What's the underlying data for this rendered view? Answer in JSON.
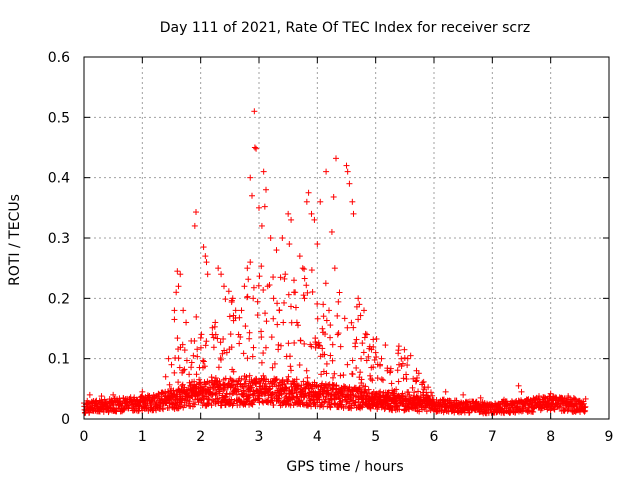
{
  "chart_data": {
    "type": "scatter",
    "title": "Day 111 of 2021, Rate Of TEC Index for receiver scrz",
    "xlabel": "GPS time / hours",
    "ylabel": "ROTI / TECUs",
    "xlim": [
      0,
      9
    ],
    "ylim": [
      0,
      0.6
    ],
    "xticks": [
      "0",
      "1",
      "2",
      "3",
      "4",
      "5",
      "6",
      "7",
      "8",
      "9"
    ],
    "yticks": [
      "0",
      "0.1",
      "0.2",
      "0.3",
      "0.4",
      "0.5",
      "0.6"
    ],
    "grid": true,
    "marker": "plus",
    "color": "#ff0000",
    "series": [
      {
        "name": "ROTI",
        "profile": {
          "hours_range": [
            0,
            8.6
          ],
          "baseline_envelope": [
            [
              0.0,
              0.022
            ],
            [
              1.0,
              0.028
            ],
            [
              1.5,
              0.035
            ],
            [
              2.0,
              0.045
            ],
            [
              2.5,
              0.05
            ],
            [
              3.0,
              0.05
            ],
            [
              3.5,
              0.05
            ],
            [
              4.0,
              0.045
            ],
            [
              4.5,
              0.04
            ],
            [
              5.0,
              0.035
            ],
            [
              5.5,
              0.03
            ],
            [
              6.0,
              0.025
            ],
            [
              7.0,
              0.02
            ],
            [
              8.0,
              0.028
            ],
            [
              8.6,
              0.025
            ]
          ],
          "activity_envelope": [
            [
              1.4,
              0.0
            ],
            [
              1.6,
              0.12
            ],
            [
              2.0,
              0.15
            ],
            [
              2.5,
              0.2
            ],
            [
              3.0,
              0.25
            ],
            [
              3.5,
              0.25
            ],
            [
              4.0,
              0.25
            ],
            [
              4.5,
              0.2
            ],
            [
              5.0,
              0.12
            ],
            [
              5.6,
              0.08
            ],
            [
              6.0,
              0.0
            ]
          ]
        },
        "points": [
          [
            2.92,
            0.51
          ],
          [
            2.93,
            0.45
          ],
          [
            2.95,
            0.448
          ],
          [
            3.08,
            0.41
          ],
          [
            3.12,
            0.38
          ],
          [
            3.1,
            0.352
          ],
          [
            3.05,
            0.32
          ],
          [
            2.85,
            0.4
          ],
          [
            2.88,
            0.37
          ],
          [
            3.0,
            0.35
          ],
          [
            3.2,
            0.3
          ],
          [
            3.3,
            0.28
          ],
          [
            4.32,
            0.432
          ],
          [
            4.5,
            0.42
          ],
          [
            4.52,
            0.41
          ],
          [
            4.55,
            0.39
          ],
          [
            4.6,
            0.36
          ],
          [
            4.62,
            0.34
          ],
          [
            4.15,
            0.41
          ],
          [
            4.05,
            0.36
          ],
          [
            3.85,
            0.375
          ],
          [
            3.82,
            0.36
          ],
          [
            3.9,
            0.34
          ],
          [
            3.95,
            0.33
          ],
          [
            4.0,
            0.29
          ],
          [
            4.28,
            0.368
          ],
          [
            4.25,
            0.31
          ],
          [
            4.3,
            0.25
          ],
          [
            1.92,
            0.343
          ],
          [
            1.9,
            0.32
          ],
          [
            2.05,
            0.285
          ],
          [
            2.08,
            0.27
          ],
          [
            2.1,
            0.26
          ],
          [
            2.12,
            0.24
          ],
          [
            2.3,
            0.25
          ],
          [
            2.35,
            0.24
          ],
          [
            2.4,
            0.22
          ],
          [
            1.6,
            0.245
          ],
          [
            1.65,
            0.24
          ],
          [
            1.62,
            0.22
          ],
          [
            1.58,
            0.21
          ],
          [
            1.7,
            0.18
          ],
          [
            1.75,
            0.16
          ],
          [
            1.55,
            0.18
          ],
          [
            1.55,
            0.165
          ],
          [
            2.55,
            0.2
          ],
          [
            2.6,
            0.18
          ],
          [
            2.7,
            0.18
          ],
          [
            2.75,
            0.22
          ],
          [
            2.8,
            0.25
          ],
          [
            2.85,
            0.26
          ],
          [
            3.4,
            0.3
          ],
          [
            3.5,
            0.34
          ],
          [
            3.55,
            0.33
          ],
          [
            3.52,
            0.29
          ],
          [
            3.6,
            0.23
          ],
          [
            3.62,
            0.21
          ],
          [
            3.7,
            0.27
          ],
          [
            3.75,
            0.25
          ],
          [
            3.45,
            0.24
          ],
          [
            4.7,
            0.2
          ],
          [
            4.72,
            0.19
          ],
          [
            4.8,
            0.18
          ],
          [
            4.85,
            0.14
          ],
          [
            4.9,
            0.12
          ],
          [
            5.0,
            0.11
          ],
          [
            5.1,
            0.1
          ],
          [
            5.2,
            0.08
          ],
          [
            5.4,
            0.09
          ],
          [
            5.55,
            0.1
          ],
          [
            5.6,
            0.105
          ],
          [
            5.7,
            0.08
          ],
          [
            5.8,
            0.06
          ],
          [
            7.45,
            0.055
          ],
          [
            7.5,
            0.045
          ],
          [
            1.4,
            0.07
          ],
          [
            1.45,
            0.1
          ],
          [
            1.5,
            0.09
          ],
          [
            2.2,
            0.14
          ],
          [
            2.25,
            0.16
          ],
          [
            2.5,
            0.17
          ],
          [
            2.65,
            0.14
          ],
          [
            2.9,
            0.2
          ],
          [
            3.15,
            0.22
          ],
          [
            3.25,
            0.2
          ],
          [
            3.35,
            0.18
          ],
          [
            3.65,
            0.16
          ],
          [
            3.78,
            0.2
          ],
          [
            4.1,
            0.19
          ],
          [
            4.2,
            0.18
          ],
          [
            4.35,
            0.14
          ],
          [
            4.4,
            0.12
          ],
          [
            4.65,
            0.12
          ],
          [
            4.75,
            0.1
          ],
          [
            1.0,
            0.045
          ],
          [
            0.5,
            0.04
          ],
          [
            0.3,
            0.038
          ],
          [
            0.1,
            0.04
          ],
          [
            6.2,
            0.045
          ],
          [
            6.5,
            0.04
          ],
          [
            6.8,
            0.035
          ],
          [
            7.2,
            0.032
          ],
          [
            7.8,
            0.038
          ],
          [
            8.0,
            0.042
          ],
          [
            8.3,
            0.038
          ],
          [
            8.5,
            0.03
          ]
        ]
      }
    ]
  }
}
